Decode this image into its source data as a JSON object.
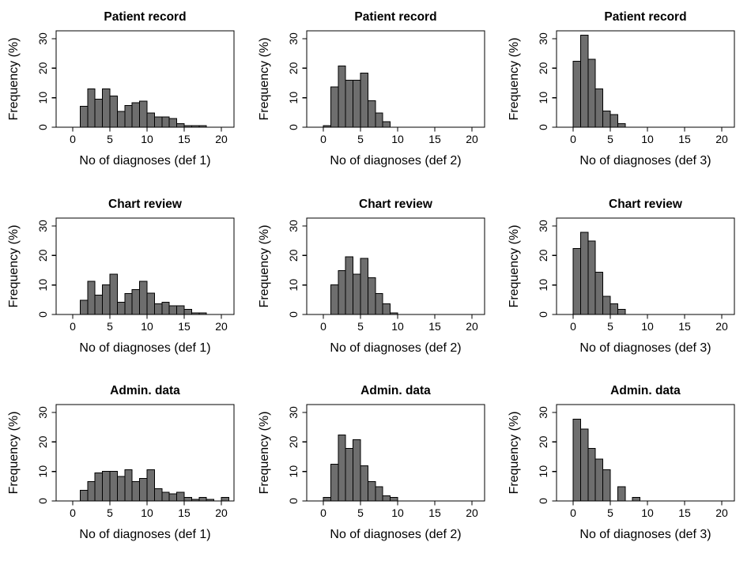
{
  "page": {
    "background": "#ffffff"
  },
  "styles": {
    "bar_fill": "#6e6e6e",
    "bar_stroke": "#000000",
    "axis_color": "#000000",
    "text_color": "#000000",
    "title_font_size": 15.5,
    "axis_label_font_size": 16,
    "tick_font_size": 14
  },
  "chart_data": [
    {
      "type": "bar",
      "title": "Patient record",
      "xlabel": "No of diagnoses (def 1)",
      "ylabel": "Frequency (%)",
      "xlim": [
        -1,
        21.5
      ],
      "ylim": [
        0,
        33
      ],
      "xticks": [
        0,
        5,
        10,
        15,
        20
      ],
      "yticks": [
        0,
        10,
        20,
        30
      ],
      "bin_width": 1,
      "bars": [
        [
          1,
          7.1
        ],
        [
          2,
          13.0
        ],
        [
          3,
          9.5
        ],
        [
          4,
          13.0
        ],
        [
          5,
          10.6
        ],
        [
          6,
          5.4
        ],
        [
          7,
          7.3
        ],
        [
          8,
          8.3
        ],
        [
          9,
          8.8
        ],
        [
          10,
          4.8
        ],
        [
          11,
          3.5
        ],
        [
          12,
          3.5
        ],
        [
          13,
          2.9
        ],
        [
          14,
          1.2
        ],
        [
          15,
          0.6
        ],
        [
          16,
          0.6
        ],
        [
          17,
          0.6
        ]
      ]
    },
    {
      "type": "bar",
      "title": "Patient record",
      "xlabel": "No of diagnoses (def 2)",
      "ylabel": "Frequency (%)",
      "xlim": [
        -1,
        21.5
      ],
      "ylim": [
        0,
        33
      ],
      "xticks": [
        0,
        5,
        10,
        15,
        20
      ],
      "yticks": [
        0,
        10,
        20,
        30
      ],
      "bin_width": 1,
      "bars": [
        [
          0,
          0.6
        ],
        [
          1,
          13.7
        ],
        [
          2,
          20.7
        ],
        [
          3,
          16.0
        ],
        [
          4,
          16.0
        ],
        [
          5,
          18.4
        ],
        [
          6,
          9.0
        ],
        [
          7,
          4.8
        ],
        [
          8,
          1.9
        ]
      ]
    },
    {
      "type": "bar",
      "title": "Patient record",
      "xlabel": "No of diagnoses (def 3)",
      "ylabel": "Frequency (%)",
      "xlim": [
        -1,
        21.5
      ],
      "ylim": [
        0,
        33
      ],
      "xticks": [
        0,
        5,
        10,
        15,
        20
      ],
      "yticks": [
        0,
        10,
        20,
        30
      ],
      "bin_width": 1,
      "bars": [
        [
          0,
          22.3
        ],
        [
          1,
          31.2
        ],
        [
          2,
          23.0
        ],
        [
          3,
          13.0
        ],
        [
          4,
          5.5
        ],
        [
          5,
          4.3
        ],
        [
          6,
          1.2
        ]
      ]
    },
    {
      "type": "bar",
      "title": "Chart review",
      "xlabel": "No of diagnoses (def 1)",
      "ylabel": "Frequency (%)",
      "xlim": [
        -1,
        21.5
      ],
      "ylim": [
        0,
        33
      ],
      "xticks": [
        0,
        5,
        10,
        15,
        20
      ],
      "yticks": [
        0,
        10,
        20,
        30
      ],
      "bin_width": 1,
      "bars": [
        [
          1,
          4.8
        ],
        [
          2,
          11.2
        ],
        [
          3,
          6.6
        ],
        [
          4,
          10.0
        ],
        [
          5,
          13.7
        ],
        [
          6,
          4.2
        ],
        [
          7,
          7.1
        ],
        [
          8,
          8.4
        ],
        [
          9,
          11.2
        ],
        [
          10,
          7.2
        ],
        [
          11,
          3.6
        ],
        [
          12,
          4.2
        ],
        [
          13,
          3.0
        ],
        [
          14,
          3.0
        ],
        [
          15,
          1.8
        ],
        [
          16,
          0.6
        ],
        [
          17,
          0.6
        ]
      ]
    },
    {
      "type": "bar",
      "title": "Chart review",
      "xlabel": "No of diagnoses (def 2)",
      "ylabel": "Frequency (%)",
      "xlim": [
        -1,
        21.5
      ],
      "ylim": [
        0,
        33
      ],
      "xticks": [
        0,
        5,
        10,
        15,
        20
      ],
      "yticks": [
        0,
        10,
        20,
        30
      ],
      "bin_width": 1,
      "bars": [
        [
          1,
          10.0
        ],
        [
          2,
          14.8
        ],
        [
          3,
          19.5
        ],
        [
          4,
          13.7
        ],
        [
          5,
          19.0
        ],
        [
          6,
          12.5
        ],
        [
          7,
          7.1
        ],
        [
          8,
          3.6
        ],
        [
          9,
          0.6
        ]
      ]
    },
    {
      "type": "bar",
      "title": "Chart review",
      "xlabel": "No of diagnoses (def 3)",
      "ylabel": "Frequency (%)",
      "xlim": [
        -1,
        21.5
      ],
      "ylim": [
        0,
        33
      ],
      "xticks": [
        0,
        5,
        10,
        15,
        20
      ],
      "yticks": [
        0,
        10,
        20,
        30
      ],
      "bin_width": 1,
      "bars": [
        [
          0,
          22.4
        ],
        [
          1,
          27.9
        ],
        [
          2,
          24.9
        ],
        [
          3,
          14.3
        ],
        [
          4,
          6.1
        ],
        [
          5,
          3.6
        ],
        [
          6,
          1.8
        ]
      ]
    },
    {
      "type": "bar",
      "title": "Admin. data",
      "xlabel": "No of diagnoses (def 1)",
      "ylabel": "Frequency (%)",
      "xlim": [
        -1,
        21.5
      ],
      "ylim": [
        0,
        33
      ],
      "xticks": [
        0,
        5,
        10,
        15,
        20
      ],
      "yticks": [
        0,
        10,
        20,
        30
      ],
      "bin_width": 1,
      "bars": [
        [
          1,
          3.6
        ],
        [
          2,
          6.5
        ],
        [
          3,
          9.5
        ],
        [
          4,
          10.0
        ],
        [
          5,
          10.0
        ],
        [
          6,
          8.3
        ],
        [
          7,
          10.6
        ],
        [
          8,
          6.5
        ],
        [
          9,
          7.7
        ],
        [
          10,
          10.6
        ],
        [
          11,
          4.2
        ],
        [
          12,
          3.0
        ],
        [
          13,
          2.4
        ],
        [
          14,
          3.0
        ],
        [
          15,
          1.2
        ],
        [
          16,
          0.6
        ],
        [
          17,
          1.2
        ],
        [
          18,
          0.6
        ],
        [
          20,
          1.2
        ]
      ]
    },
    {
      "type": "bar",
      "title": "Admin. data",
      "xlabel": "No of diagnoses (def 2)",
      "ylabel": "Frequency (%)",
      "xlim": [
        -1,
        21.5
      ],
      "ylim": [
        0,
        33
      ],
      "xticks": [
        0,
        5,
        10,
        15,
        20
      ],
      "yticks": [
        0,
        10,
        20,
        30
      ],
      "bin_width": 1,
      "bars": [
        [
          0,
          1.2
        ],
        [
          1,
          12.5
        ],
        [
          2,
          22.4
        ],
        [
          3,
          17.8
        ],
        [
          4,
          20.7
        ],
        [
          5,
          11.9
        ],
        [
          6,
          6.5
        ],
        [
          7,
          4.8
        ],
        [
          8,
          1.8
        ],
        [
          9,
          1.2
        ]
      ]
    },
    {
      "type": "bar",
      "title": "Admin. data",
      "xlabel": "No of diagnoses (def 3)",
      "ylabel": "Frequency (%)",
      "xlim": [
        -1,
        21.5
      ],
      "ylim": [
        0,
        33
      ],
      "xticks": [
        0,
        5,
        10,
        15,
        20
      ],
      "yticks": [
        0,
        10,
        20,
        30
      ],
      "bin_width": 1,
      "bars": [
        [
          0,
          27.7
        ],
        [
          1,
          24.4
        ],
        [
          2,
          17.8
        ],
        [
          3,
          14.2
        ],
        [
          4,
          10.6
        ],
        [
          6,
          4.8
        ],
        [
          8,
          1.2
        ]
      ]
    }
  ]
}
